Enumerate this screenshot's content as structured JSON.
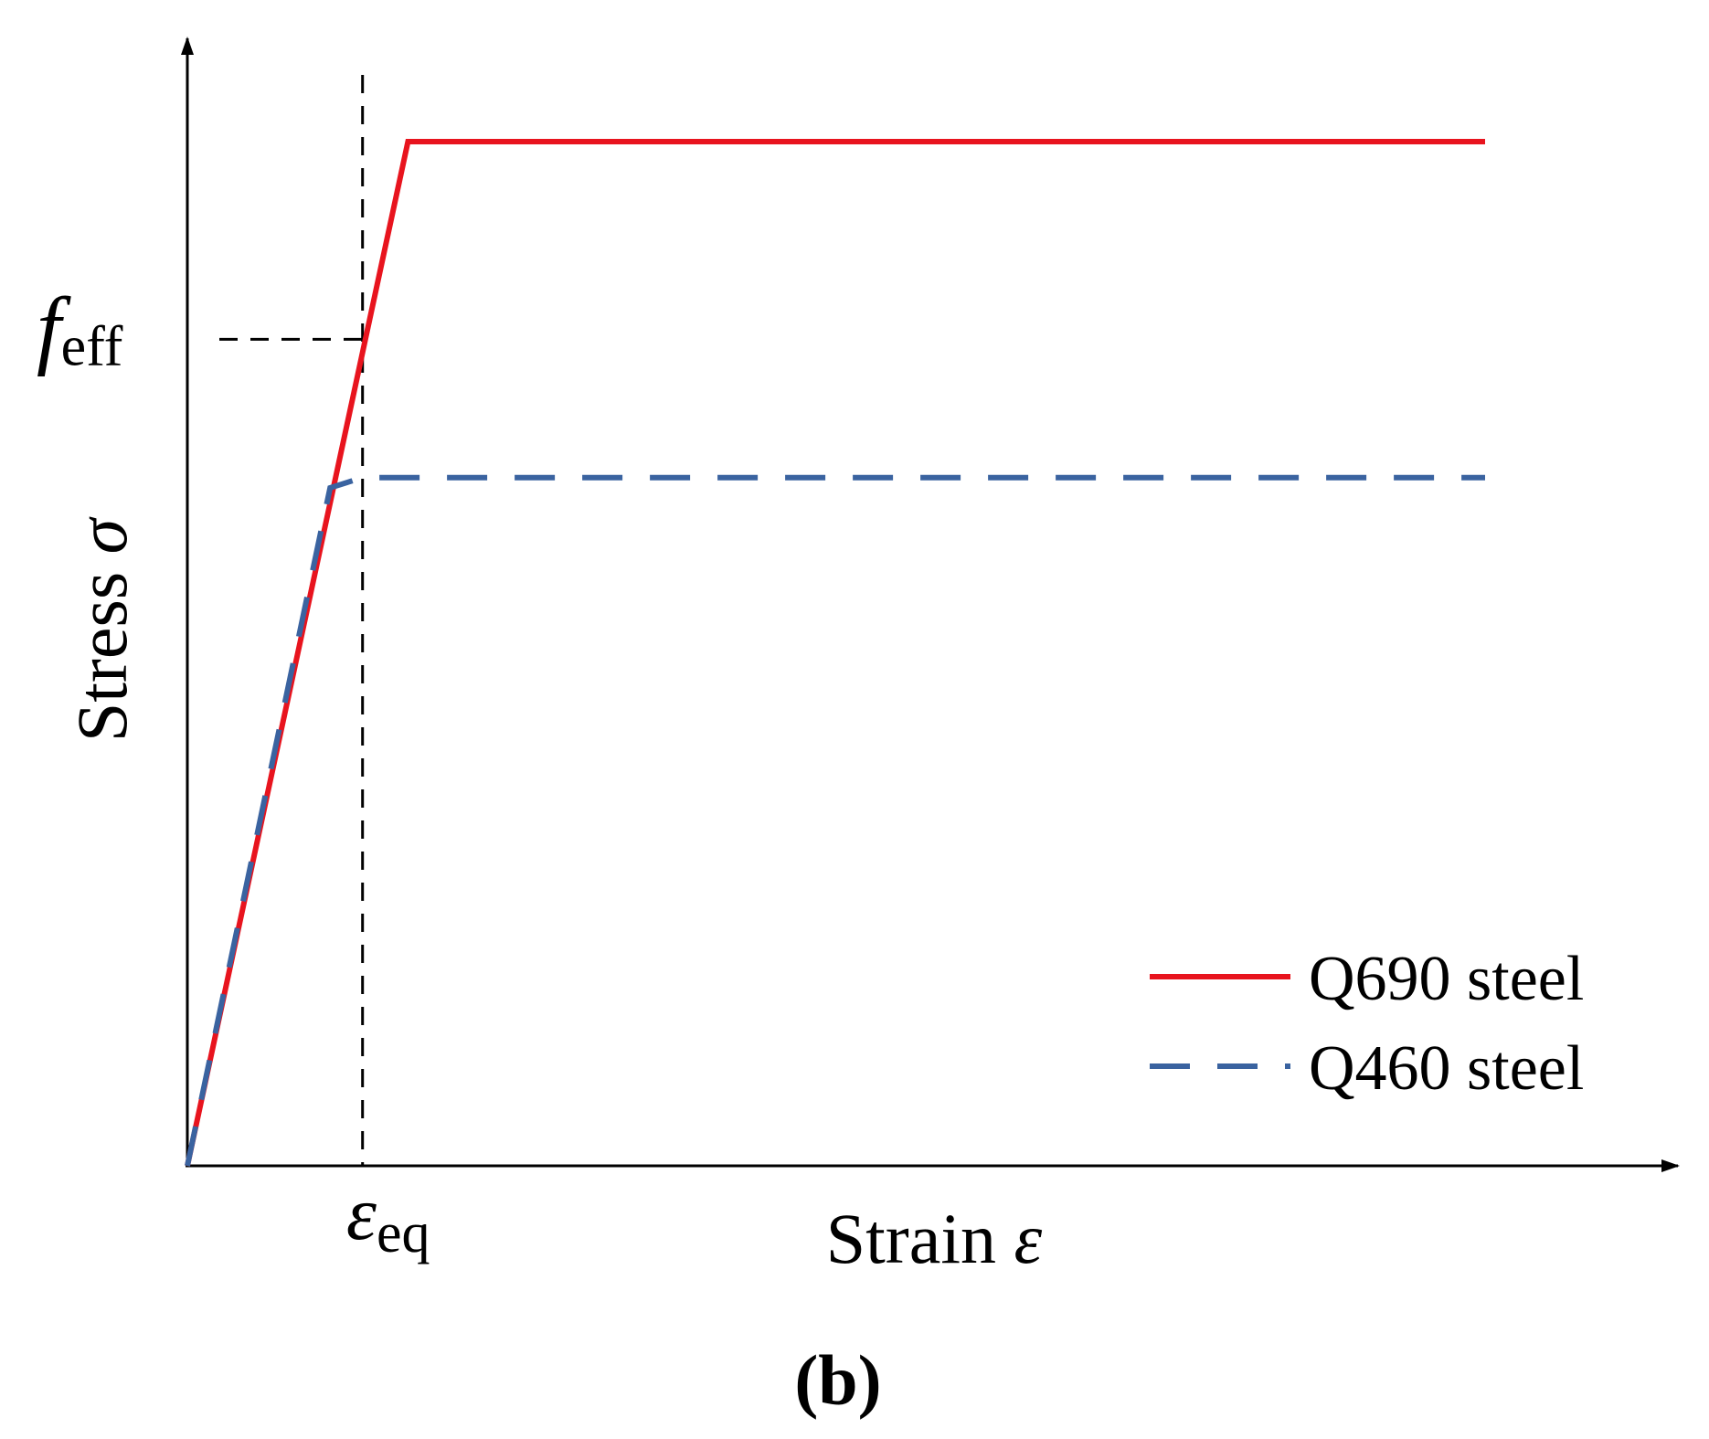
{
  "chart_data": {
    "type": "line",
    "title": "",
    "xlabel": "Strain",
    "xlabel_symbol": "ε",
    "ylabel": "Stress",
    "ylabel_symbol": "σ",
    "xlim": [
      0,
      1
    ],
    "ylim": [
      0,
      1
    ],
    "grid": false,
    "legend_position": "bottom-right",
    "reference_lines": {
      "x_label_main": "ε",
      "x_label_sub": "eq",
      "x_value": 0.135,
      "y_label_main": "f",
      "y_label_sub": "eff",
      "y_value": 0.807
    },
    "series": [
      {
        "name": "Q690 steel",
        "style": "solid",
        "color": "#e8141e",
        "x": [
          0,
          0.17,
          1.0
        ],
        "y": [
          0,
          1.0,
          1.0
        ]
      },
      {
        "name": "Q460 steel",
        "style": "dashed",
        "color": "#3a63a0",
        "x": [
          0,
          0.11,
          0.135,
          1.0
        ],
        "y": [
          0,
          0.662,
          0.672,
          0.672
        ]
      }
    ],
    "panel_label": "(b)"
  }
}
